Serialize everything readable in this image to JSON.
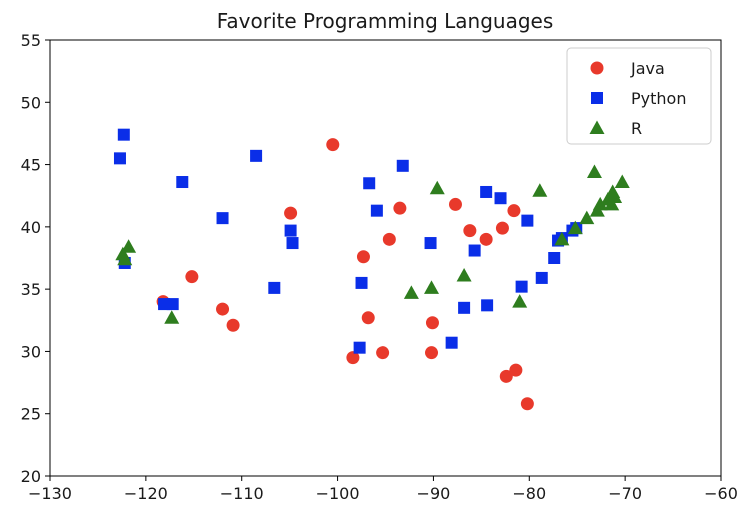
{
  "chart_data": {
    "type": "scatter",
    "title": "Favorite Programming Languages",
    "xlabel": "",
    "ylabel": "",
    "xlim": [
      -130,
      -60
    ],
    "ylim": [
      20,
      55
    ],
    "xticks": [
      -130,
      -120,
      -110,
      -100,
      -90,
      -80,
      -70,
      -60
    ],
    "yticks": [
      20,
      25,
      30,
      35,
      40,
      45,
      50,
      55
    ],
    "xtick_labels": [
      "−130",
      "−120",
      "−110",
      "−100",
      "−90",
      "−80",
      "−70",
      "−60"
    ],
    "ytick_labels": [
      "20",
      "25",
      "30",
      "35",
      "40",
      "45",
      "50",
      "55"
    ],
    "grid": false,
    "legend_position": "top-right",
    "series": [
      {
        "name": "Java",
        "marker": "circle",
        "color": "#e8392b",
        "points": [
          [
            -100.5,
            46.6
          ],
          [
            -104.9,
            41.1
          ],
          [
            -93.5,
            41.5
          ],
          [
            -87.7,
            41.8
          ],
          [
            -81.6,
            41.3
          ],
          [
            -86.2,
            39.7
          ],
          [
            -84.5,
            39.0
          ],
          [
            -82.8,
            39.9
          ],
          [
            -94.6,
            39.0
          ],
          [
            -97.3,
            37.6
          ],
          [
            -115.2,
            36.0
          ],
          [
            -118.2,
            34.0
          ],
          [
            -112.0,
            33.4
          ],
          [
            -110.9,
            32.1
          ],
          [
            -96.8,
            32.7
          ],
          [
            -90.1,
            32.3
          ],
          [
            -98.4,
            29.5
          ],
          [
            -95.3,
            29.9
          ],
          [
            -90.2,
            29.9
          ],
          [
            -82.4,
            28.0
          ],
          [
            -81.4,
            28.5
          ],
          [
            -80.2,
            25.8
          ]
        ]
      },
      {
        "name": "Python",
        "marker": "square",
        "color": "#0a2ee8",
        "points": [
          [
            -122.3,
            47.4
          ],
          [
            -122.7,
            45.5
          ],
          [
            -108.5,
            45.7
          ],
          [
            -116.2,
            43.6
          ],
          [
            -112.0,
            40.7
          ],
          [
            -104.9,
            39.7
          ],
          [
            -104.7,
            38.7
          ],
          [
            -96.7,
            43.5
          ],
          [
            -93.2,
            44.9
          ],
          [
            -95.9,
            41.3
          ],
          [
            -90.3,
            38.7
          ],
          [
            -84.5,
            42.8
          ],
          [
            -83.0,
            42.3
          ],
          [
            -80.2,
            40.5
          ],
          [
            -85.7,
            38.1
          ],
          [
            -76.6,
            39.1
          ],
          [
            -75.5,
            39.7
          ],
          [
            -75.1,
            39.9
          ],
          [
            -77.0,
            38.9
          ],
          [
            -77.4,
            37.5
          ],
          [
            -78.7,
            35.9
          ],
          [
            -80.8,
            35.2
          ],
          [
            -84.4,
            33.7
          ],
          [
            -86.8,
            33.5
          ],
          [
            -88.1,
            30.7
          ],
          [
            -97.5,
            35.5
          ],
          [
            -97.7,
            30.3
          ],
          [
            -106.6,
            35.1
          ],
          [
            -117.2,
            33.8
          ],
          [
            -118.1,
            33.8
          ],
          [
            -122.2,
            37.1
          ]
        ]
      },
      {
        "name": "R",
        "marker": "triangle",
        "color": "#2e7d1e",
        "points": [
          [
            -122.4,
            37.8
          ],
          [
            -121.8,
            38.4
          ],
          [
            -122.2,
            37.4
          ],
          [
            -117.3,
            32.7
          ],
          [
            -89.6,
            43.1
          ],
          [
            -78.9,
            42.9
          ],
          [
            -73.2,
            44.4
          ],
          [
            -71.1,
            42.4
          ],
          [
            -71.8,
            42.2
          ],
          [
            -72.6,
            41.8
          ],
          [
            -72.9,
            41.3
          ],
          [
            -71.4,
            41.8
          ],
          [
            -70.3,
            43.6
          ],
          [
            -74.0,
            40.7
          ],
          [
            -75.2,
            39.9
          ],
          [
            -76.6,
            39.0
          ],
          [
            -86.8,
            36.1
          ],
          [
            -81.0,
            34.0
          ],
          [
            -90.2,
            35.1
          ],
          [
            -92.3,
            34.7
          ],
          [
            -71.3,
            42.8
          ]
        ]
      }
    ]
  }
}
